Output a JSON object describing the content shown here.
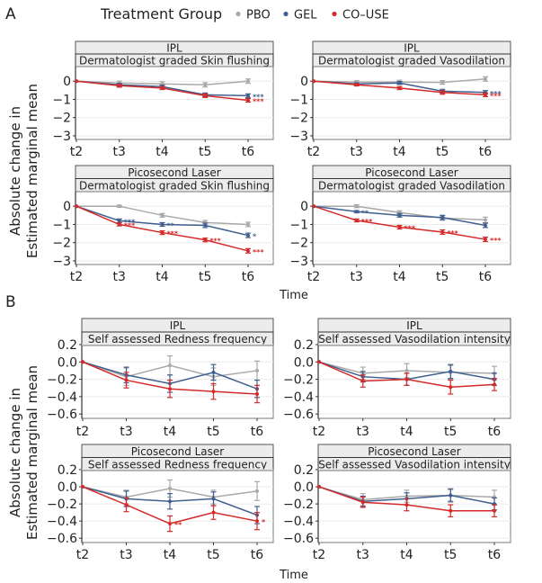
{
  "figure": {
    "section_labels": [
      "A",
      "B"
    ],
    "legend": {
      "title": "Treatment Group",
      "entries": [
        {
          "name": "PBO",
          "color": "#a9a9a9"
        },
        {
          "name": "GEL",
          "color": "#3f5f8f"
        },
        {
          "name": "CO–USE",
          "color": "#d42a2a"
        }
      ]
    },
    "ylabel_line1": "Absolute change in",
    "ylabel_line2": "Estimated marginal mean",
    "xlabel": "Time"
  },
  "chart_data": [
    {
      "type": "line",
      "section": "A",
      "strip_top": "IPL",
      "strip_bottom": "Dermatologist graded Skin flushing",
      "categories": [
        "t2",
        "t3",
        "t4",
        "t5",
        "t6"
      ],
      "ylim": [
        -3.2,
        0.8
      ],
      "yticks": [
        0,
        -1,
        -2,
        -3
      ],
      "ytick_labels": [
        "0",
        "−1",
        "−2",
        "−3"
      ],
      "series": [
        {
          "name": "PBO",
          "values": [
            0,
            -0.1,
            -0.15,
            -0.2,
            0.0
          ],
          "err": [
            0,
            0.1,
            0.12,
            0.12,
            0.12
          ],
          "sig": [
            "",
            "",
            "",
            "",
            ""
          ]
        },
        {
          "name": "GEL",
          "values": [
            0,
            -0.2,
            -0.3,
            -0.75,
            -0.8
          ],
          "err": [
            0,
            0.08,
            0.08,
            0.1,
            0.1
          ],
          "sig": [
            "",
            "",
            "",
            "",
            "***"
          ]
        },
        {
          "name": "CO–USE",
          "values": [
            0,
            -0.25,
            -0.38,
            -0.8,
            -1.05
          ],
          "err": [
            0,
            0.08,
            0.08,
            0.1,
            0.1
          ],
          "sig": [
            "",
            "",
            "",
            "",
            "***"
          ]
        }
      ]
    },
    {
      "type": "line",
      "section": "A",
      "strip_top": "IPL",
      "strip_bottom": "Dermatologist graded Vasodilation",
      "categories": [
        "t2",
        "t3",
        "t4",
        "t5",
        "t6"
      ],
      "ylim": [
        -3.2,
        0.8
      ],
      "yticks": [
        0,
        -1,
        -2,
        -3
      ],
      "ytick_labels": [
        "0",
        "−1",
        "−2",
        "−3"
      ],
      "series": [
        {
          "name": "PBO",
          "values": [
            0,
            -0.05,
            -0.05,
            -0.07,
            0.12
          ],
          "err": [
            0,
            0.08,
            0.1,
            0.1,
            0.12
          ],
          "sig": [
            "",
            "",
            "",
            "",
            ""
          ]
        },
        {
          "name": "GEL",
          "values": [
            0,
            -0.15,
            -0.1,
            -0.55,
            -0.62
          ],
          "err": [
            0,
            0.06,
            0.08,
            0.1,
            0.1
          ],
          "sig": [
            "",
            "",
            "",
            "",
            "***"
          ]
        },
        {
          "name": "CO–USE",
          "values": [
            0,
            -0.2,
            -0.38,
            -0.62,
            -0.75
          ],
          "err": [
            0,
            0.06,
            0.08,
            0.1,
            0.1
          ],
          "sig": [
            "",
            "",
            "",
            "",
            "***"
          ]
        }
      ]
    },
    {
      "type": "line",
      "section": "A",
      "strip_top": "Picosecond Laser",
      "strip_bottom": "Dermatologist graded Skin flushing",
      "categories": [
        "t2",
        "t3",
        "t4",
        "t5",
        "t6"
      ],
      "ylim": [
        -3.2,
        0.8
      ],
      "yticks": [
        0,
        -1,
        -2,
        -3
      ],
      "ytick_labels": [
        "0",
        "−1",
        "−2",
        "−3"
      ],
      "series": [
        {
          "name": "PBO",
          "values": [
            0,
            0.0,
            -0.5,
            -0.9,
            -1.0
          ],
          "err": [
            0,
            0.06,
            0.1,
            0.12,
            0.12
          ],
          "sig": [
            "",
            "",
            "",
            "",
            ""
          ]
        },
        {
          "name": "GEL",
          "values": [
            0,
            -0.8,
            -1.0,
            -1.05,
            -1.6
          ],
          "err": [
            0,
            0.1,
            0.1,
            0.12,
            0.12
          ],
          "sig": [
            "",
            "***",
            "**",
            "",
            "*"
          ]
        },
        {
          "name": "CO–USE",
          "values": [
            0,
            -1.0,
            -1.45,
            -1.85,
            -2.45
          ],
          "err": [
            0,
            0.08,
            0.1,
            0.1,
            0.12
          ],
          "sig": [
            "",
            "***",
            "***",
            "***",
            "***"
          ]
        }
      ]
    },
    {
      "type": "line",
      "section": "A",
      "strip_top": "Picosecond Laser",
      "strip_bottom": "Dermatologist graded Vasodilation",
      "categories": [
        "t2",
        "t3",
        "t4",
        "t5",
        "t6"
      ],
      "ylim": [
        -3.2,
        0.8
      ],
      "yticks": [
        0,
        -1,
        -2,
        -3
      ],
      "ytick_labels": [
        "0",
        "−1",
        "−2",
        "−3"
      ],
      "series": [
        {
          "name": "PBO",
          "values": [
            0,
            0.0,
            -0.35,
            -0.65,
            -0.75
          ],
          "err": [
            0,
            0.08,
            0.1,
            0.12,
            0.15
          ],
          "sig": [
            "",
            "",
            "",
            "",
            ""
          ]
        },
        {
          "name": "GEL",
          "values": [
            0,
            -0.3,
            -0.5,
            -0.62,
            -1.05
          ],
          "err": [
            0,
            0.06,
            0.1,
            0.12,
            0.12
          ],
          "sig": [
            "",
            "**",
            "",
            "",
            ""
          ]
        },
        {
          "name": "CO–USE",
          "values": [
            0,
            -0.78,
            -1.15,
            -1.42,
            -1.82
          ],
          "err": [
            0,
            0.08,
            0.1,
            0.12,
            0.12
          ],
          "sig": [
            "",
            "***",
            "***",
            "***",
            "***"
          ]
        }
      ]
    },
    {
      "type": "line",
      "section": "B",
      "strip_top": "IPL",
      "strip_bottom": "Self assessed Redness frequency",
      "categories": [
        "t2",
        "t3",
        "t4",
        "t5",
        "t6"
      ],
      "ylim": [
        -0.65,
        0.2
      ],
      "yticks": [
        0.2,
        0.0,
        -0.2,
        -0.4,
        -0.6
      ],
      "ytick_labels": [
        "0.2",
        "0.0",
        "−0.2",
        "−0.4",
        "−0.6"
      ],
      "series": [
        {
          "name": "PBO",
          "values": [
            0,
            -0.17,
            -0.04,
            -0.17,
            -0.1
          ],
          "err": [
            0,
            0.1,
            0.11,
            0.1,
            0.11
          ],
          "sig": [
            "",
            "",
            "",
            "",
            ""
          ]
        },
        {
          "name": "GEL",
          "values": [
            0,
            -0.15,
            -0.25,
            -0.12,
            -0.31
          ],
          "err": [
            0,
            0.09,
            0.1,
            0.09,
            0.1
          ],
          "sig": [
            "",
            "",
            "",
            "",
            ""
          ]
        },
        {
          "name": "CO–USE",
          "values": [
            0,
            -0.21,
            -0.31,
            -0.34,
            -0.37
          ],
          "err": [
            0,
            0.09,
            0.1,
            0.09,
            0.1
          ],
          "sig": [
            "",
            "",
            "",
            "",
            ""
          ]
        }
      ]
    },
    {
      "type": "line",
      "section": "B",
      "strip_top": "IPL",
      "strip_bottom": "Self assessed Vasodilation intensity",
      "categories": [
        "t2",
        "t3",
        "t4",
        "t5",
        "t6"
      ],
      "ylim": [
        -0.65,
        0.2
      ],
      "yticks": [
        0.2,
        0.0,
        -0.2,
        -0.4,
        -0.6
      ],
      "ytick_labels": [
        "0.2",
        "0.0",
        "−0.2",
        "−0.4",
        "−0.6"
      ],
      "series": [
        {
          "name": "PBO",
          "values": [
            0,
            -0.13,
            -0.1,
            -0.12,
            -0.13
          ],
          "err": [
            0,
            0.07,
            0.08,
            0.08,
            0.08
          ],
          "sig": [
            "",
            "",
            "",
            "",
            ""
          ]
        },
        {
          "name": "GEL",
          "values": [
            0,
            -0.17,
            -0.2,
            -0.11,
            -0.2
          ],
          "err": [
            0,
            0.06,
            0.07,
            0.08,
            0.07
          ],
          "sig": [
            "",
            "",
            "",
            "",
            ""
          ]
        },
        {
          "name": "CO–USE",
          "values": [
            0,
            -0.22,
            -0.2,
            -0.29,
            -0.26
          ],
          "err": [
            0,
            0.07,
            0.07,
            0.08,
            0.07
          ],
          "sig": [
            "",
            "",
            "",
            "",
            ""
          ]
        }
      ]
    },
    {
      "type": "line",
      "section": "B",
      "strip_top": "Picosecond Laser",
      "strip_bottom": "Self assessed Redness frequency",
      "categories": [
        "t2",
        "t3",
        "t4",
        "t5",
        "t6"
      ],
      "ylim": [
        -0.65,
        0.2
      ],
      "yticks": [
        0.2,
        0.0,
        -0.2,
        -0.4,
        -0.6
      ],
      "ytick_labels": [
        "0.2",
        "0.0",
        "−0.2",
        "−0.4",
        "−0.6"
      ],
      "series": [
        {
          "name": "PBO",
          "values": [
            0,
            -0.12,
            -0.02,
            -0.12,
            -0.05
          ],
          "err": [
            0,
            0.08,
            0.1,
            0.08,
            0.11
          ],
          "sig": [
            "",
            "",
            "",
            "",
            ""
          ]
        },
        {
          "name": "GEL",
          "values": [
            0,
            -0.14,
            -0.17,
            -0.14,
            -0.33
          ],
          "err": [
            0,
            0.09,
            0.09,
            0.08,
            0.1
          ],
          "sig": [
            "",
            "",
            "",
            "",
            ""
          ]
        },
        {
          "name": "CO–USE",
          "values": [
            0,
            -0.21,
            -0.43,
            -0.3,
            -0.4
          ],
          "err": [
            0,
            0.08,
            0.09,
            0.08,
            0.1
          ],
          "sig": [
            "",
            "",
            "**",
            "",
            "*"
          ]
        }
      ]
    },
    {
      "type": "line",
      "section": "B",
      "strip_top": "Picosecond Laser",
      "strip_bottom": "Self assessed Vasodilation intensity",
      "categories": [
        "t2",
        "t3",
        "t4",
        "t5",
        "t6"
      ],
      "ylim": [
        -0.65,
        0.2
      ],
      "yticks": [
        0.2,
        0.0,
        -0.2,
        -0.4,
        -0.6
      ],
      "ytick_labels": [
        "0.2",
        "0.0",
        "−0.2",
        "−0.4",
        "−0.6"
      ],
      "series": [
        {
          "name": "PBO",
          "values": [
            0,
            -0.15,
            -0.11,
            -0.1,
            -0.12
          ],
          "err": [
            0,
            0.07,
            0.07,
            0.08,
            0.08
          ],
          "sig": [
            "",
            "",
            "",
            "",
            ""
          ]
        },
        {
          "name": "GEL",
          "values": [
            0,
            -0.17,
            -0.14,
            -0.1,
            -0.2
          ],
          "err": [
            0,
            0.06,
            0.07,
            0.07,
            0.07
          ],
          "sig": [
            "",
            "",
            "",
            "",
            ""
          ]
        },
        {
          "name": "CO–USE",
          "values": [
            0,
            -0.18,
            -0.21,
            -0.28,
            -0.28
          ],
          "err": [
            0,
            0.06,
            0.07,
            0.07,
            0.07
          ],
          "sig": [
            "",
            "",
            "",
            "",
            ""
          ]
        }
      ]
    }
  ]
}
